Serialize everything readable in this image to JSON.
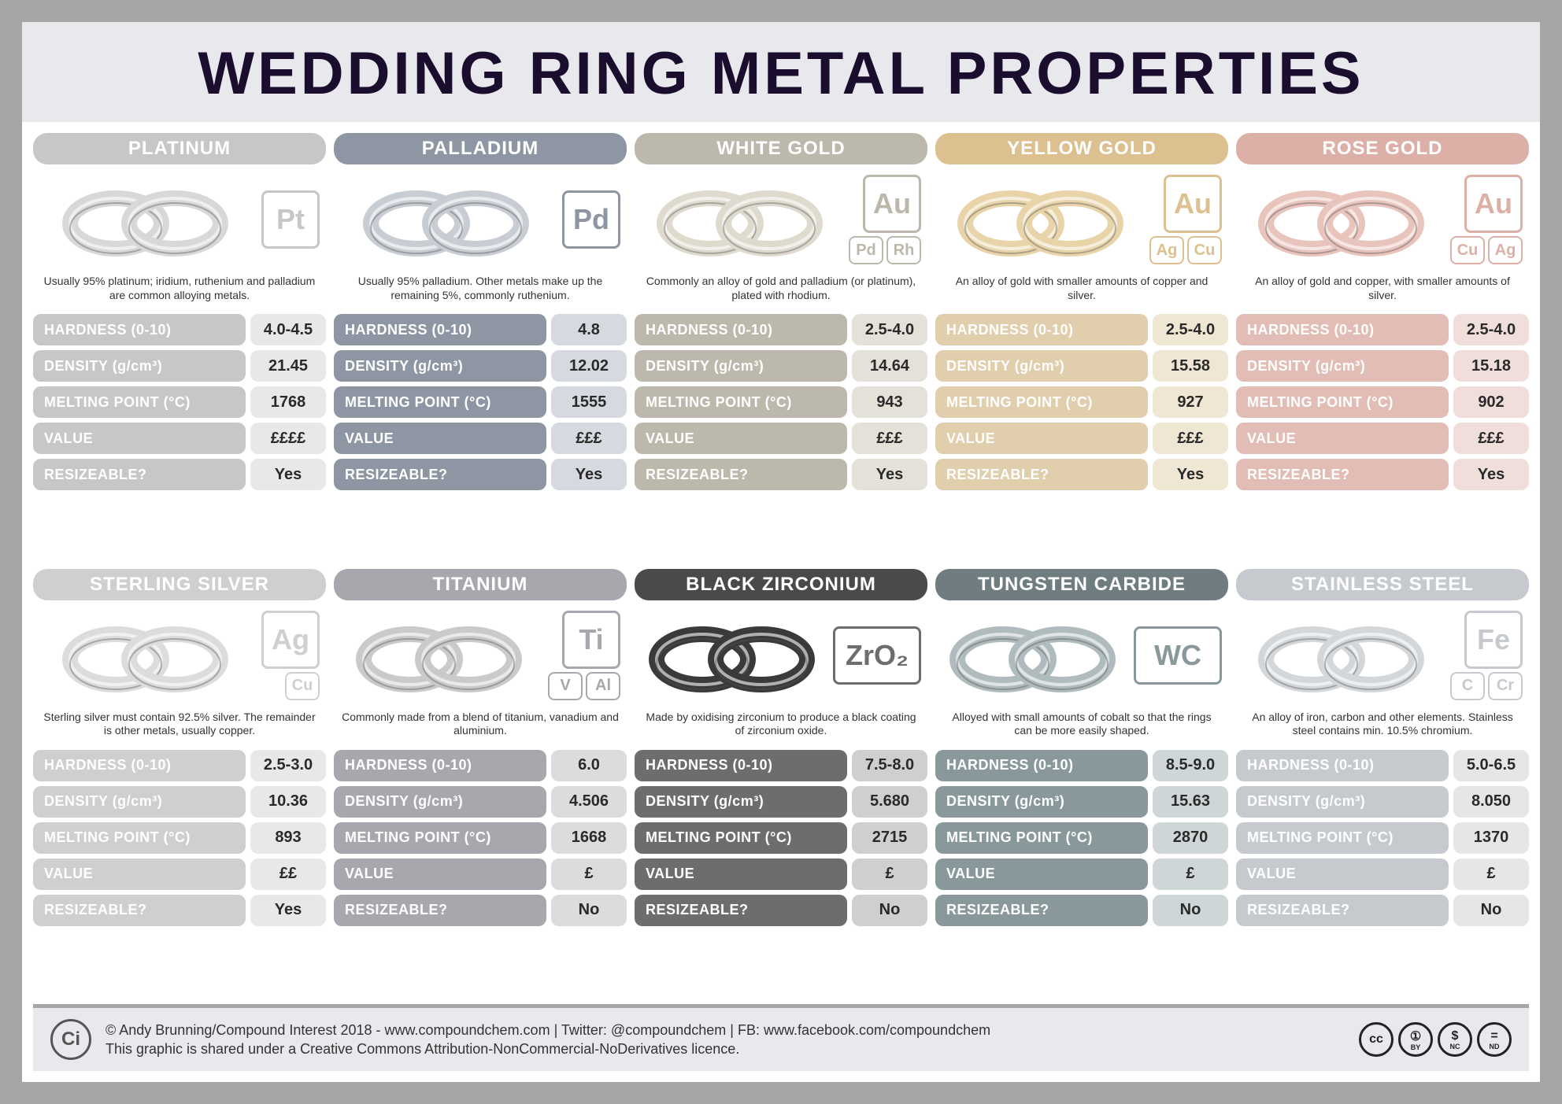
{
  "title": "WEDDING RING METAL PROPERTIES",
  "prop_labels": {
    "hardness": "HARDNESS (0-10)",
    "density": "DENSITY (g/cm³)",
    "melting": "MELTING POINT (°C)",
    "value": "VALUE",
    "resize": "RESIZEABLE?"
  },
  "metals": [
    {
      "name": "PLATINUM",
      "header_color": "#c7c7c7",
      "label_color": "#c7c7c7",
      "value_bg": "#e8e8e8",
      "elem_color": "#c7c7c7",
      "ring_color": "#d8d8d8",
      "elements": {
        "main": "Pt",
        "subs": []
      },
      "desc": "Usually 95% platinum; iridium, ruthenium and palladium are common alloying metals.",
      "hardness": "4.0-4.5",
      "density": "21.45",
      "melting": "1768",
      "value": "££££",
      "resize": "Yes"
    },
    {
      "name": "PALLADIUM",
      "header_color": "#8e96a3",
      "label_color": "#8e96a3",
      "value_bg": "#d6dae0",
      "elem_color": "#8e96a3",
      "ring_color": "#c8cdd4",
      "elements": {
        "main": "Pd",
        "subs": []
      },
      "desc": "Usually 95% palladium. Other metals make up the remaining 5%, commonly ruthenium.",
      "hardness": "4.8",
      "density": "12.02",
      "melting": "1555",
      "value": "£££",
      "resize": "Yes"
    },
    {
      "name": "WHITE GOLD",
      "header_color": "#bdb8ac",
      "label_color": "#bdb8ac",
      "value_bg": "#e4e1d9",
      "elem_color": "#bdb8ac",
      "ring_color": "#dedace",
      "elements": {
        "main": "Au",
        "subs": [
          "Pd",
          "Rh"
        ]
      },
      "desc": "Commonly an alloy of gold and palladium (or platinum), plated with rhodium.",
      "hardness": "2.5-4.0",
      "density": "14.64",
      "melting": "943",
      "value": "£££",
      "resize": "Yes"
    },
    {
      "name": "YELLOW GOLD",
      "header_color": "#dcc08f",
      "label_color": "#e0ceac",
      "value_bg": "#efe6d3",
      "elem_color": "#dcc08f",
      "ring_color": "#e8d4a8",
      "elements": {
        "main": "Au",
        "subs": [
          "Ag",
          "Cu"
        ]
      },
      "desc": "An alloy of gold with smaller amounts of copper and silver.",
      "hardness": "2.5-4.0",
      "density": "15.58",
      "melting": "927",
      "value": "£££",
      "resize": "Yes"
    },
    {
      "name": "ROSE GOLD",
      "header_color": "#dcb0a7",
      "label_color": "#e2bdb5",
      "value_bg": "#f0dedb",
      "elem_color": "#dcb0a7",
      "ring_color": "#e8c4bc",
      "elements": {
        "main": "Au",
        "subs": [
          "Cu",
          "Ag"
        ]
      },
      "desc": "An alloy of gold and copper, with smaller amounts of silver.",
      "hardness": "2.5-4.0",
      "density": "15.18",
      "melting": "902",
      "value": "£££",
      "resize": "Yes"
    },
    {
      "name": "STERLING SILVER",
      "header_color": "#cfcfcf",
      "label_color": "#cfcfcf",
      "value_bg": "#e8e8e8",
      "elem_color": "#cfcfcf",
      "ring_color": "#dcdcdc",
      "elements": {
        "main": "Ag",
        "subs": [
          "Cu"
        ],
        "sub_align": "right"
      },
      "desc": "Sterling silver must contain 92.5% silver. The remainder is other metals, usually copper.",
      "hardness": "2.5-3.0",
      "density": "10.36",
      "melting": "893",
      "value": "££",
      "resize": "Yes"
    },
    {
      "name": "TITANIUM",
      "header_color": "#a7a7ad",
      "label_color": "#a7a7ad",
      "value_bg": "#dcdcde",
      "elem_color": "#a7a7ad",
      "ring_color": "#cacacd",
      "elements": {
        "main": "Ti",
        "subs": [
          "V",
          "Al"
        ]
      },
      "desc": "Commonly made from a blend of titanium, vanadium and aluminium.",
      "hardness": "6.0",
      "density": "4.506",
      "melting": "1668",
      "value": "£",
      "resize": "No"
    },
    {
      "name": "BLACK ZIRCONIUM",
      "header_color": "#4a4a4a",
      "label_color": "#6d6d6d",
      "value_bg": "#cfcfcf",
      "elem_color": "#6d6d6d",
      "ring_color": "#3a3a3a",
      "elements": {
        "main_wide": "ZrO₂",
        "subs": []
      },
      "desc": "Made by oxidising zirconium to produce a black coating of zirconium oxide.",
      "hardness": "7.5-8.0",
      "density": "5.680",
      "melting": "2715",
      "value": "£",
      "resize": "No"
    },
    {
      "name": "TUNGSTEN CARBIDE",
      "header_color": "#6f7d80",
      "label_color": "#88989b",
      "value_bg": "#cfd6d7",
      "elem_color": "#88989b",
      "ring_color": "#b0bbbd",
      "elements": {
        "main_wide": "WC",
        "subs": []
      },
      "desc": "Alloyed with small amounts of cobalt so that the rings can be more easily shaped.",
      "hardness": "8.5-9.0",
      "density": "15.63",
      "melting": "2870",
      "value": "£",
      "resize": "No"
    },
    {
      "name": "STAINLESS STEEL",
      "header_color": "#c6cace",
      "label_color": "#c6cace",
      "value_bg": "#e4e6e8",
      "elem_color": "#c6cace",
      "ring_color": "#d4d7da",
      "elements": {
        "main": "Fe",
        "subs": [
          "C",
          "Cr"
        ]
      },
      "desc": "An alloy of iron, carbon and other elements. Stainless steel contains min. 10.5% chromium.",
      "hardness": "5.0-6.5",
      "density": "8.050",
      "melting": "1370",
      "value": "£",
      "resize": "No"
    }
  ],
  "footer": {
    "logo": "Ci",
    "line1": "© Andy Brunning/Compound Interest 2018 - www.compoundchem.com | Twitter: @compoundchem | FB: www.facebook.com/compoundchem",
    "line2": "This graphic is shared under a Creative Commons Attribution-NonCommercial-NoDerivatives licence.",
    "cc": [
      "cc",
      "①",
      "$",
      "="
    ],
    "cc_labels": [
      "",
      "BY",
      "NC",
      "ND"
    ]
  }
}
